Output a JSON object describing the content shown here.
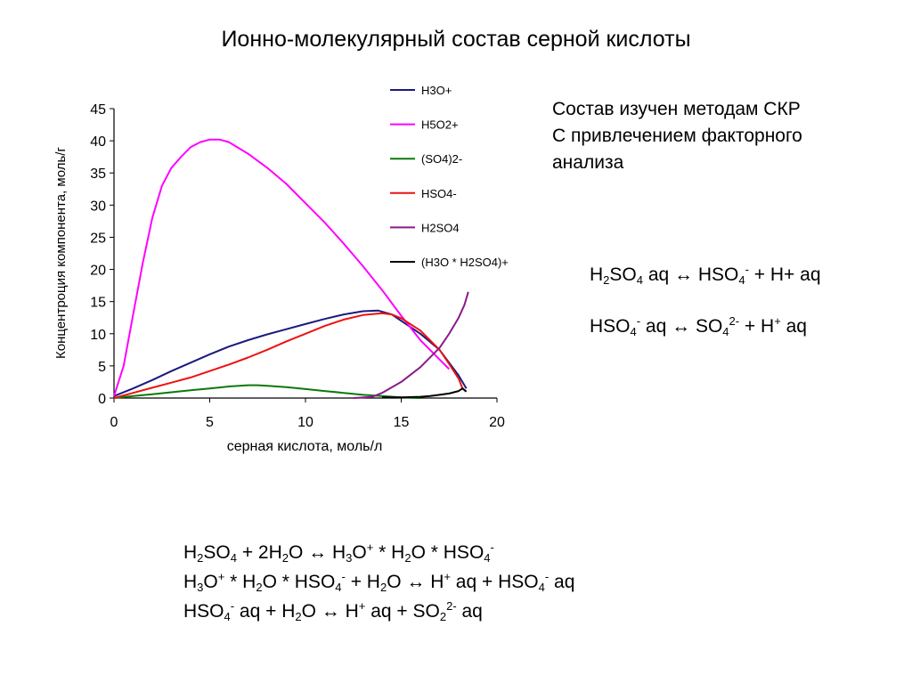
{
  "title": "Ионно-молекулярный состав серной кислоты",
  "method_note": [
    "Состав изучен методам СКР",
    "С привлечением факторного",
    "анализа"
  ],
  "equations_right": [
    [
      [
        "H",
        "n"
      ],
      [
        "2",
        "sub"
      ],
      [
        "SO",
        "n"
      ],
      [
        "4",
        "sub"
      ],
      [
        " aq ↔ HSO",
        "n"
      ],
      [
        "4",
        "sub"
      ],
      [
        "-",
        "sup"
      ],
      [
        " + H+ aq",
        "n"
      ]
    ],
    [
      [
        "HSO",
        "n"
      ],
      [
        "4",
        "sub"
      ],
      [
        "-",
        "sup"
      ],
      [
        " aq ↔ SO",
        "n"
      ],
      [
        "4",
        "sub"
      ],
      [
        "2-",
        "sup"
      ],
      [
        " + H",
        "n"
      ],
      [
        "+",
        "sup"
      ],
      [
        " aq",
        "n"
      ]
    ]
  ],
  "equations_bottom": [
    [
      [
        "H",
        "n"
      ],
      [
        "2",
        "sub"
      ],
      [
        "SO",
        "n"
      ],
      [
        "4",
        "sub"
      ],
      [
        " + 2H",
        "n"
      ],
      [
        "2",
        "sub"
      ],
      [
        "O ↔ H",
        "n"
      ],
      [
        "3",
        "sub"
      ],
      [
        "O",
        "n"
      ],
      [
        "+",
        "sup"
      ],
      [
        " * H",
        "n"
      ],
      [
        "2",
        "sub"
      ],
      [
        "O * HSO",
        "n"
      ],
      [
        "4",
        "sub"
      ],
      [
        "-",
        "sup"
      ]
    ],
    [
      [
        "H",
        "n"
      ],
      [
        "3",
        "sub"
      ],
      [
        "O",
        "n"
      ],
      [
        "+",
        "sup"
      ],
      [
        " * H",
        "n"
      ],
      [
        "2",
        "sub"
      ],
      [
        "O * HSO",
        "n"
      ],
      [
        "4",
        "sub"
      ],
      [
        "-",
        "sup"
      ],
      [
        "  + H",
        "n"
      ],
      [
        "2",
        "sub"
      ],
      [
        "O ↔ H",
        "n"
      ],
      [
        "+",
        "sup"
      ],
      [
        " aq + HSO",
        "n"
      ],
      [
        "4",
        "sub"
      ],
      [
        "-",
        "sup"
      ],
      [
        " aq",
        "n"
      ]
    ],
    [
      [
        "HSO",
        "n"
      ],
      [
        "4",
        "sub"
      ],
      [
        "-",
        "sup"
      ],
      [
        " aq + H",
        "n"
      ],
      [
        "2",
        "sub"
      ],
      [
        "O ↔ H",
        "n"
      ],
      [
        "+",
        "sup"
      ],
      [
        " aq + SO",
        "n"
      ],
      [
        "2",
        "sub"
      ],
      [
        "2-",
        "sup"
      ],
      [
        " aq",
        "n"
      ]
    ]
  ],
  "chart_data": {
    "type": "line",
    "title": "",
    "xlabel": "серная кислота, моль/л",
    "ylabel": "Концентроция компонента, моль/г",
    "xlim": [
      0,
      20
    ],
    "ylim": [
      0,
      45
    ],
    "xticks": [
      0,
      5,
      10,
      15,
      20
    ],
    "yticks": [
      0,
      5,
      10,
      15,
      20,
      25,
      30,
      35,
      40,
      45
    ],
    "grid": false,
    "legend_position": "top-right",
    "series": [
      {
        "name": "H3O+",
        "color": "#1a1a80",
        "x": [
          0,
          1,
          2,
          3,
          4,
          5,
          6,
          7,
          8,
          9,
          10,
          11,
          12,
          13,
          13.8,
          14.5,
          15,
          16,
          17,
          17.5,
          18,
          18.4
        ],
        "y": [
          0.3,
          1.5,
          2.8,
          4.2,
          5.5,
          6.8,
          8.0,
          9.0,
          9.9,
          10.7,
          11.5,
          12.3,
          13.0,
          13.5,
          13.6,
          13.0,
          12.0,
          10.0,
          7.5,
          5.5,
          3.5,
          1.5
        ]
      },
      {
        "name": "H5O2+",
        "color": "#ff00ff",
        "x": [
          0,
          0.5,
          1,
          1.5,
          2,
          2.5,
          3,
          3.5,
          4,
          4.5,
          5,
          5.5,
          6,
          7,
          8,
          9,
          10,
          11,
          12,
          13,
          14,
          15,
          16,
          17,
          17.5
        ],
        "y": [
          0.3,
          5,
          13,
          21,
          28,
          33,
          35.8,
          37.5,
          39.0,
          39.8,
          40.2,
          40.2,
          39.8,
          38.0,
          35.8,
          33.3,
          30.3,
          27.3,
          24.0,
          20.5,
          16.8,
          12.8,
          9.0,
          6.0,
          4.5
        ]
      },
      {
        "name": "(SO4)2-",
        "color": "#0a7a0a",
        "x": [
          0,
          1,
          2,
          3,
          4,
          5,
          6,
          7,
          7.5,
          8,
          9,
          10,
          11,
          12,
          13,
          14,
          15,
          16
        ],
        "y": [
          0,
          0.3,
          0.6,
          0.9,
          1.2,
          1.5,
          1.8,
          2.0,
          2.0,
          1.9,
          1.7,
          1.4,
          1.1,
          0.8,
          0.5,
          0.3,
          0.1,
          0
        ]
      },
      {
        "name": "HSO4-",
        "color": "#ee1111",
        "x": [
          0,
          1,
          2,
          3,
          4,
          5,
          6,
          7,
          8,
          9,
          10,
          11,
          12,
          13,
          14,
          14.5,
          15,
          16,
          17,
          17.5,
          18,
          18.2
        ],
        "y": [
          0,
          0.8,
          1.6,
          2.4,
          3.2,
          4.2,
          5.2,
          6.3,
          7.5,
          8.8,
          10.0,
          11.2,
          12.2,
          12.9,
          13.2,
          13.0,
          12.4,
          10.5,
          7.5,
          5.3,
          3.0,
          1.5
        ]
      },
      {
        "name": "H2SO4",
        "color": "#8b1a8b",
        "x": [
          12.5,
          13.5,
          14,
          15,
          16,
          17,
          17.5,
          18,
          18.3,
          18.5
        ],
        "y": [
          0,
          0.2,
          0.8,
          2.5,
          4.8,
          7.8,
          10.0,
          12.5,
          14.5,
          16.5
        ]
      },
      {
        "name": "(H3O * H2SO4)+",
        "color": "#000000",
        "x": [
          14,
          15,
          16,
          16.5,
          17,
          17.5,
          18,
          18.2,
          18.4
        ],
        "y": [
          0.1,
          0.1,
          0.2,
          0.3,
          0.5,
          0.7,
          1.1,
          1.5,
          1.0
        ]
      }
    ]
  }
}
